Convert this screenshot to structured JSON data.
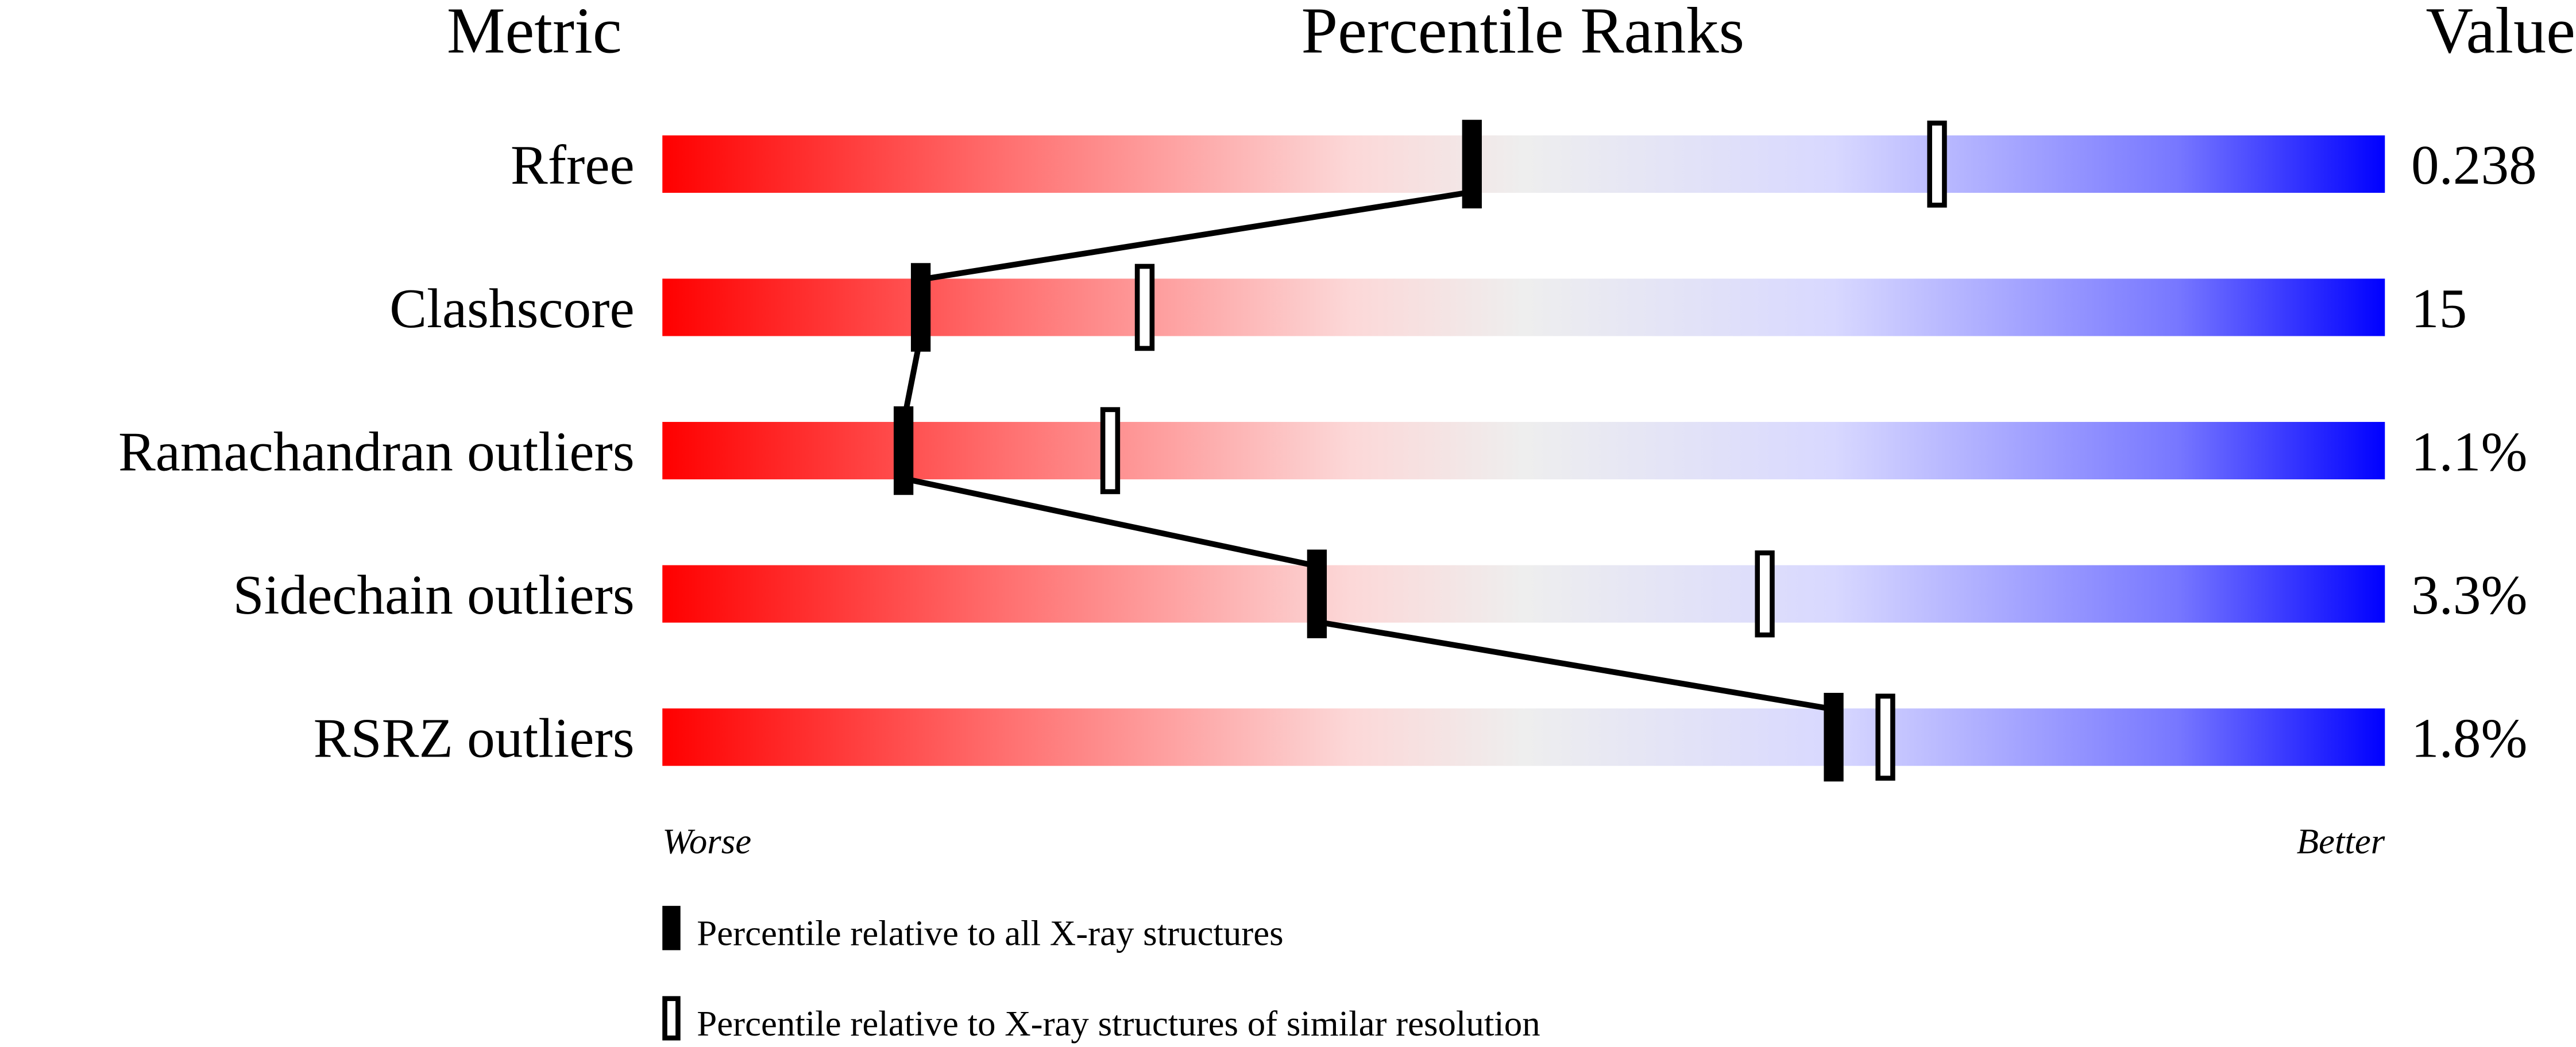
{
  "chart_data": {
    "type": "percentile-slider",
    "headers": {
      "metric": "Metric",
      "ranks": "Percentile Ranks",
      "value": "Value"
    },
    "axis": {
      "left": "Worse",
      "right": "Better",
      "range": [
        0,
        100
      ]
    },
    "gradient_colors": [
      "#ff0000",
      "#ff7070",
      "#fcd8d8",
      "#eeeeee",
      "#d8d8ff",
      "#7777ff",
      "#0000ff"
    ],
    "metrics": [
      {
        "name": "Rfree",
        "value": "0.238",
        "percentile_all": 47,
        "percentile_similar": 74
      },
      {
        "name": "Clashscore",
        "value": "15",
        "percentile_all": 15,
        "percentile_similar": 28
      },
      {
        "name": "Ramachandran outliers",
        "value": "1.1%",
        "percentile_all": 14,
        "percentile_similar": 26
      },
      {
        "name": "Sidechain outliers",
        "value": "3.3%",
        "percentile_all": 38,
        "percentile_similar": 64
      },
      {
        "name": "RSRZ outliers",
        "value": "1.8%",
        "percentile_all": 68,
        "percentile_similar": 71
      }
    ],
    "legend": {
      "all": "Percentile relative to all X-ray structures",
      "similar": "Percentile relative to X-ray structures of similar resolution"
    }
  }
}
